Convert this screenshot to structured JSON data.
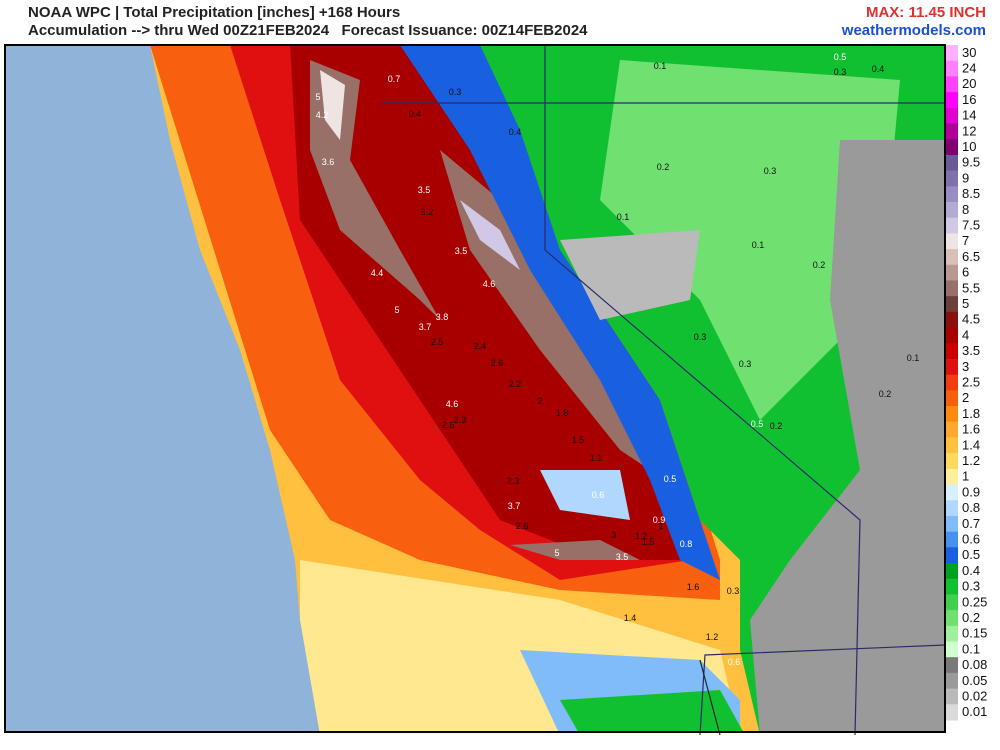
{
  "header": {
    "title": "NOAA WPC | Total Precipitation [inches] +168 Hours",
    "subtitle": "Accumulation --> thru Wed 00Z21FEB2024   Forecast Issuance: 00Z14FEB2024",
    "max_label": "MAX: 11.45 INCH",
    "site": "weathermodels.com"
  },
  "legend": {
    "levels": [
      30,
      24,
      20,
      16,
      14,
      12,
      10,
      9.5,
      9,
      8.5,
      8,
      7.5,
      7,
      6.5,
      6,
      5.5,
      5,
      4.5,
      4,
      3.5,
      3,
      2.5,
      2,
      1.8,
      1.6,
      1.4,
      1.2,
      1,
      0.9,
      0.8,
      0.7,
      0.6,
      0.5,
      0.4,
      0.3,
      0.25,
      0.2,
      0.15,
      0.1,
      0.08,
      0.05,
      0.02,
      0.01
    ],
    "colors": [
      "#ffb0ff",
      "#ff80ff",
      "#ff40ff",
      "#ff00ff",
      "#e000d0",
      "#b0009a",
      "#800070",
      "#6a5a9a",
      "#8070b0",
      "#9a8cc4",
      "#b4a8d4",
      "#d0c8e4",
      "#efe4e4",
      "#d8c0b8",
      "#b89890",
      "#987068",
      "#6a4038",
      "#8a1010",
      "#a80000",
      "#c80000",
      "#e01010",
      "#f03c10",
      "#f86010",
      "#ff8a10",
      "#ffa830",
      "#ffc040",
      "#ffd860",
      "#fff0a0",
      "#d8f0ff",
      "#b0d8ff",
      "#80bcf8",
      "#4890f0",
      "#1860e0",
      "#00a020",
      "#10c030",
      "#40d050",
      "#70e070",
      "#a0f0a0",
      "#d0ffd0",
      "#7a7a7a",
      "#9a9a9a",
      "#bababa",
      "#dadada"
    ]
  },
  "map_labels": [
    0.7,
    0.3,
    0.4,
    0.4,
    0.1,
    0.5,
    0.3,
    0.4,
    5.0,
    4.2,
    3.6,
    3.5,
    3.2,
    3.5,
    4.4,
    4.6,
    5.0,
    3.8,
    3.7,
    2.5,
    2.4,
    2.6,
    2.2,
    2.0,
    1.8,
    1.5,
    1.1,
    0.6,
    4.6,
    2.3,
    2.6,
    2.3,
    3.7,
    2.6,
    5.0,
    3.0,
    3.5,
    1.2,
    1.5,
    0.8,
    0.5,
    0.2,
    0.3,
    0.1,
    0.1,
    0.2,
    0.3,
    0.3,
    0.1,
    0.2,
    0.5,
    0.2,
    1.4,
    1.2,
    0.6,
    0.3,
    1.6,
    1.0,
    0.9
  ]
}
